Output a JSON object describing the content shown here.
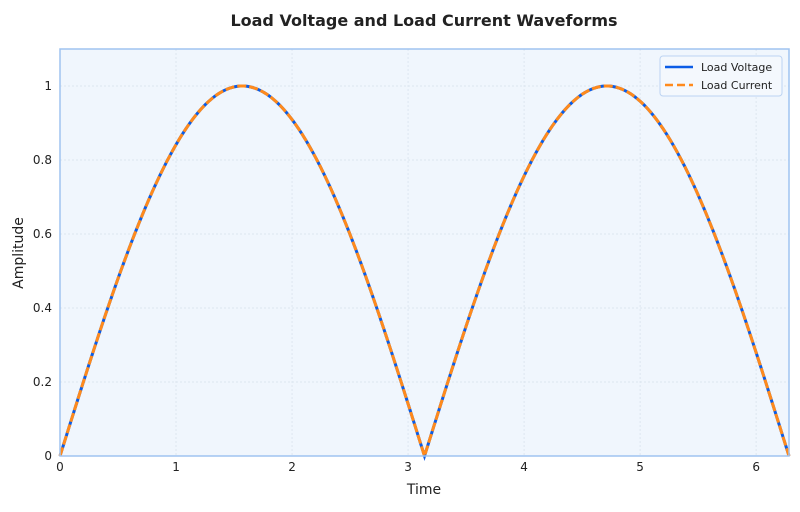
{
  "chart_data": {
    "type": "line",
    "title": "Load Voltage and Load Current Waveforms",
    "xlabel": "Time",
    "ylabel": "Amplitude",
    "xlim": [
      0,
      6.2832
    ],
    "ylim": [
      0,
      1.1
    ],
    "xticks": [
      0,
      1,
      2,
      3,
      4,
      5,
      6
    ],
    "yticks": [
      0,
      0.2,
      0.4,
      0.6,
      0.8,
      1
    ],
    "grid": true,
    "legend_position": "top-right",
    "function": "|sin(t)|",
    "x": [
      0,
      0.3927,
      0.7854,
      1.1781,
      1.5708,
      1.9635,
      2.3562,
      2.7489,
      3.1416,
      3.5343,
      3.927,
      4.3197,
      4.7124,
      5.1051,
      5.4978,
      5.8905,
      6.2832
    ],
    "series": [
      {
        "name": "Load Voltage",
        "color": "#0b5ce6",
        "style": "solid",
        "values": [
          0,
          0.383,
          0.707,
          0.924,
          1,
          0.924,
          0.707,
          0.383,
          0,
          0.383,
          0.707,
          0.924,
          1,
          0.924,
          0.707,
          0.383,
          0
        ]
      },
      {
        "name": "Load Current",
        "color": "#ff8a1c",
        "style": "dashed",
        "values": [
          0,
          0.383,
          0.707,
          0.924,
          1,
          0.924,
          0.707,
          0.383,
          0,
          0.383,
          0.707,
          0.924,
          1,
          0.924,
          0.707,
          0.383,
          0
        ]
      }
    ],
    "plot_background": "#f0f6fd",
    "frame_color": "#9fc3f0"
  }
}
